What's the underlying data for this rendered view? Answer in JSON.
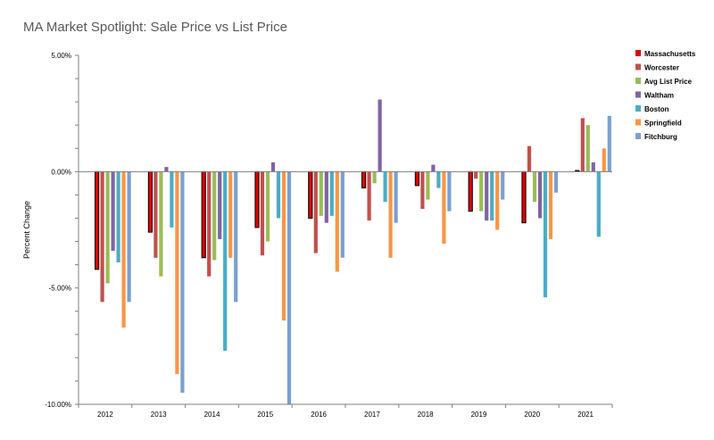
{
  "chart_data": {
    "type": "bar",
    "title": "MA Market Spotlight: Sale Price vs List Price",
    "ylabel": "Percent Change",
    "xlabel": "",
    "ylim": [
      -10,
      5
    ],
    "yticks": [
      {
        "value": 5,
        "label": "5.00%"
      },
      {
        "value": 0,
        "label": "0.00%"
      },
      {
        "value": -5,
        "label": "-5.00%"
      },
      {
        "value": -10,
        "label": "-10.00%"
      }
    ],
    "categories": [
      "2012",
      "2013",
      "2014",
      "2015",
      "2016",
      "2017",
      "2018",
      "2019",
      "2020",
      "2021"
    ],
    "legend_position": "right",
    "series": [
      {
        "name": "Massachusetts",
        "color": "#e00000",
        "outlined": true,
        "values": [
          -4.2,
          -2.6,
          -3.7,
          -2.4,
          -2.0,
          -0.7,
          -0.6,
          -1.7,
          -2.2,
          0.05
        ]
      },
      {
        "name": "Worcester",
        "color": "#c0504d",
        "values": [
          -5.6,
          -3.7,
          -4.5,
          -3.6,
          -3.5,
          -2.1,
          -1.6,
          -0.3,
          1.1,
          2.3
        ]
      },
      {
        "name": "Avg List Price",
        "color": "#9bbb59",
        "values": [
          -4.8,
          -4.5,
          -3.8,
          -3.0,
          -1.9,
          -0.5,
          -1.2,
          -1.7,
          -1.3,
          2.0
        ]
      },
      {
        "name": "Waltham",
        "color": "#8064a2",
        "values": [
          -3.4,
          0.2,
          -2.9,
          0.4,
          -2.2,
          3.1,
          0.3,
          -2.1,
          -2.0,
          0.4
        ]
      },
      {
        "name": "Boston",
        "color": "#4bacc6",
        "values": [
          -3.9,
          -2.4,
          -7.7,
          -2.0,
          -1.9,
          -1.3,
          -0.7,
          -2.1,
          -5.4,
          -2.8
        ]
      },
      {
        "name": "Springfield",
        "color": "#f79646",
        "values": [
          -6.7,
          -8.7,
          -3.7,
          -6.4,
          -4.3,
          -3.7,
          -3.1,
          -2.5,
          -2.9,
          1.0
        ]
      },
      {
        "name": "Fitchburg",
        "color": "#7ba0d0",
        "values": [
          -5.6,
          -9.5,
          -5.6,
          -10.0,
          -3.7,
          -2.2,
          -1.7,
          -1.2,
          -0.9,
          2.4
        ]
      }
    ]
  }
}
